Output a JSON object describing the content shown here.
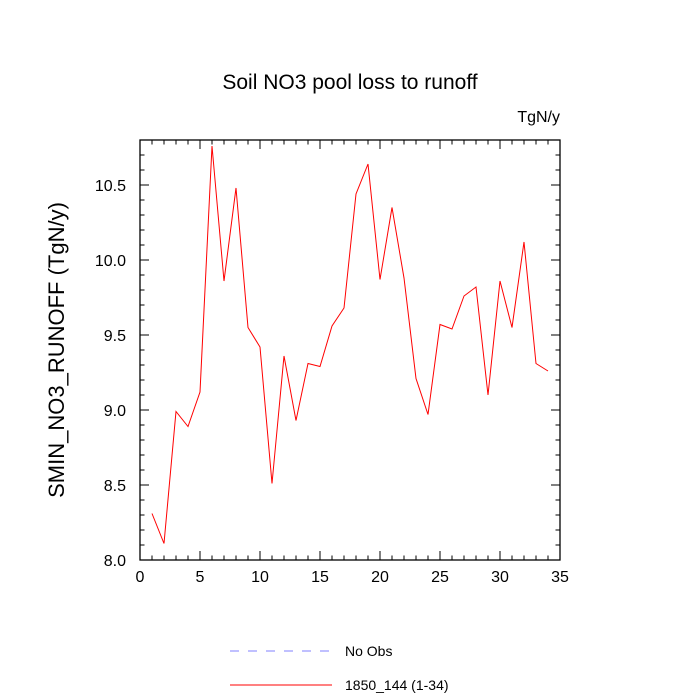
{
  "chart_data": {
    "type": "line",
    "title": "Soil NO3 pool loss to runoff",
    "units": "TgN/y",
    "xlabel": "",
    "ylabel": "SMIN_NO3_RUNOFF  (TgN/y)",
    "xlim": [
      0,
      35
    ],
    "ylim": [
      8.0,
      10.8
    ],
    "x_ticks": [
      0,
      5,
      10,
      15,
      20,
      25,
      30,
      35
    ],
    "x_tick_labels": [
      "0",
      "5",
      "10",
      "15",
      "20",
      "25",
      "30",
      "35"
    ],
    "y_ticks": [
      8.0,
      8.5,
      9.0,
      9.5,
      10.0,
      10.5
    ],
    "y_tick_labels": [
      "8.0",
      "8.5",
      "9.0",
      "9.5",
      "10.0",
      "10.5"
    ],
    "grid": false,
    "legend_position": "bottom",
    "series": [
      {
        "name": "No Obs",
        "color": "#8080ff",
        "dash": true,
        "x": [],
        "values": []
      },
      {
        "name": "1850_144 (1-34)",
        "color": "#ff0000",
        "dash": false,
        "x": [
          1,
          2,
          3,
          4,
          5,
          6,
          7,
          8,
          9,
          10,
          11,
          12,
          13,
          14,
          15,
          16,
          17,
          18,
          19,
          20,
          21,
          22,
          23,
          24,
          25,
          26,
          27,
          28,
          29,
          30,
          31,
          32,
          33,
          34
        ],
        "values": [
          8.31,
          8.11,
          8.99,
          8.89,
          9.12,
          10.76,
          9.86,
          10.48,
          9.55,
          9.42,
          8.51,
          9.36,
          8.93,
          9.31,
          9.29,
          9.56,
          9.68,
          10.44,
          10.64,
          9.87,
          10.35,
          9.88,
          9.21,
          8.97,
          9.57,
          9.54,
          9.76,
          9.82,
          9.1,
          9.86,
          9.55,
          10.12,
          9.31,
          9.26
        ]
      }
    ]
  }
}
